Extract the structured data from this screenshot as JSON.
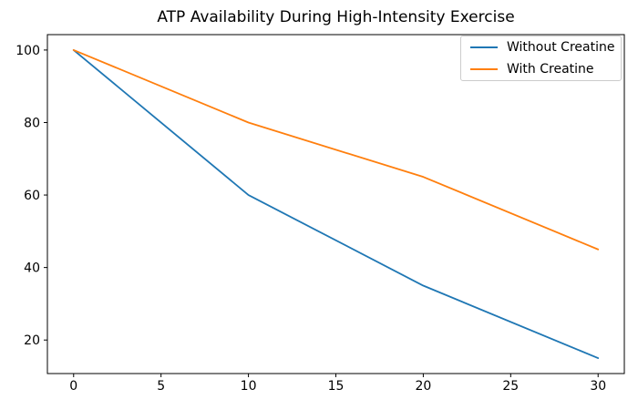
{
  "title": "ATP Availability During High-Intensity Exercise",
  "chart_data": {
    "type": "line",
    "x": [
      0,
      10,
      20,
      30
    ],
    "series": [
      {
        "name": "Without Creatine",
        "color": "#1f77b4",
        "values": [
          100,
          60,
          35,
          15
        ]
      },
      {
        "name": "With Creatine",
        "color": "#ff7f0e",
        "values": [
          100,
          80,
          65,
          45
        ]
      }
    ],
    "title": "ATP Availability During High-Intensity Exercise",
    "xlabel": "",
    "ylabel": "",
    "xticks": [
      0,
      5,
      10,
      15,
      20,
      25,
      30
    ],
    "yticks": [
      20,
      40,
      60,
      80,
      100
    ],
    "xlim": [
      -1.5,
      31.5
    ],
    "ylim": [
      10.75,
      104.25
    ],
    "grid": false,
    "legend_position": "upper right"
  },
  "legend": {
    "items": [
      "Without Creatine",
      "With Creatine"
    ]
  },
  "colors": {
    "background": "#ffffff",
    "spine": "#000000",
    "tick": "#000000",
    "legend_border": "#cccccc",
    "series_blue": "#1f77b4",
    "series_orange": "#ff7f0e"
  }
}
